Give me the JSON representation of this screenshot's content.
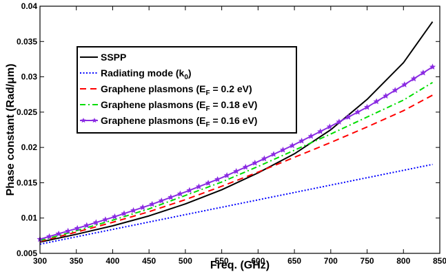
{
  "chart_data": {
    "type": "line",
    "xlabel": "Freq. (GHz)",
    "ylabel": "Phase constant (Rad/μm)",
    "xlim": [
      300,
      850
    ],
    "ylim": [
      0.005,
      0.04
    ],
    "x_ticks": [
      300,
      350,
      400,
      450,
      500,
      550,
      600,
      650,
      700,
      750,
      800,
      850
    ],
    "y_ticks": [
      0.005,
      0.01,
      0.015,
      0.02,
      0.025,
      0.03,
      0.035,
      0.04
    ],
    "y_tick_labels": [
      "0.005",
      "0.01",
      "0.015",
      "0.02",
      "0.025",
      "0.03",
      "0.035",
      "0.04"
    ],
    "grid": false,
    "legend_position": "upper-left",
    "series": [
      {
        "name": "SSPP",
        "color": "#000000",
        "style": "solid",
        "x": [
          300,
          350,
          400,
          450,
          500,
          550,
          600,
          650,
          700,
          750,
          800,
          840
        ],
        "y": [
          0.0066,
          0.0077,
          0.0089,
          0.0103,
          0.012,
          0.014,
          0.0164,
          0.0191,
          0.0225,
          0.0268,
          0.032,
          0.0378
        ]
      },
      {
        "name": "Radiating mode (k0)",
        "name_main": "Radiating mode (k",
        "name_sub": "0",
        "name_end": ")",
        "color": "#0000ff",
        "style": "dotted",
        "x": [
          300,
          840
        ],
        "y": [
          0.0063,
          0.0176
        ]
      },
      {
        "name": "Graphene plasmons (EF = 0.2 eV)",
        "name_main": "Graphene plasmons (E",
        "name_sub": "F",
        "name_end": " = 0.2 eV)",
        "color": "#ff0000",
        "style": "dashed",
        "x": [
          300,
          350,
          400,
          450,
          500,
          550,
          600,
          650,
          700,
          750,
          800,
          840
        ],
        "y": [
          0.0067,
          0.008,
          0.0094,
          0.0109,
          0.0126,
          0.0145,
          0.0165,
          0.0186,
          0.0207,
          0.0229,
          0.0252,
          0.0274
        ]
      },
      {
        "name": "Graphene plasmons (EF = 0.18 eV)",
        "name_main": "Graphene plasmons (E",
        "name_sub": "F",
        "name_end": " = 0.18 eV)",
        "color": "#00dd00",
        "style": "dashdot",
        "x": [
          300,
          350,
          400,
          450,
          500,
          550,
          600,
          650,
          700,
          750,
          800,
          840
        ],
        "y": [
          0.0068,
          0.0082,
          0.0097,
          0.0113,
          0.0132,
          0.0151,
          0.0173,
          0.0196,
          0.0219,
          0.0243,
          0.0267,
          0.0292
        ]
      },
      {
        "name": "Graphene plasmons (EF = 0.16 eV)",
        "name_main": "Graphene plasmons (E",
        "name_sub": "F",
        "name_end": " = 0.16 eV)",
        "color": "#8a2be2",
        "style": "solid-star",
        "x": [
          300,
          350,
          400,
          450,
          500,
          550,
          600,
          650,
          700,
          750,
          800,
          840
        ],
        "y": [
          0.007,
          0.0085,
          0.0101,
          0.0118,
          0.0137,
          0.0157,
          0.018,
          0.0204,
          0.023,
          0.0257,
          0.0288,
          0.0314
        ]
      }
    ]
  }
}
